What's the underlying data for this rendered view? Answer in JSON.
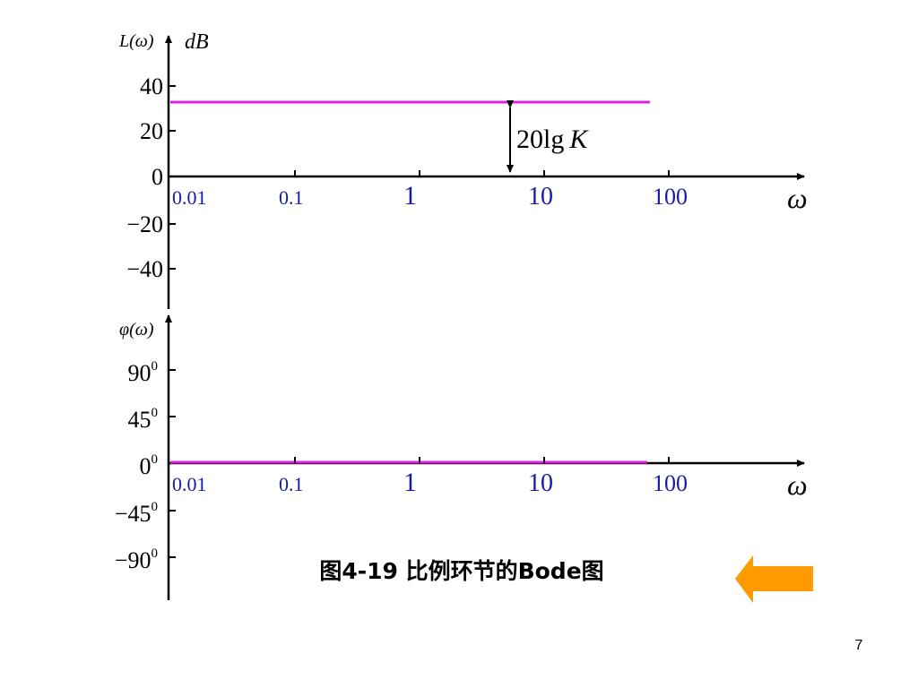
{
  "magnitude_plot": {
    "y_label": "L(ω)",
    "y_unit": "dB",
    "y_ticks": [
      "40",
      "20",
      "0",
      "−20",
      "−40"
    ],
    "x_ticks": [
      "0.01",
      "0.1",
      "1",
      "10",
      "100"
    ],
    "x_label": "ω",
    "annotation": {
      "text": "20lg",
      "symbol": "K"
    }
  },
  "phase_plot": {
    "y_label": "φ(ω)",
    "y_ticks": [
      {
        "base": "90",
        "sup": "0"
      },
      {
        "base": "45",
        "sup": "0"
      },
      {
        "base": "0",
        "sup": "0"
      },
      {
        "base": "−45",
        "sup": "0"
      },
      {
        "base": "−90",
        "sup": "0"
      }
    ],
    "x_ticks": [
      "0.01",
      "0.1",
      "1",
      "10",
      "100"
    ],
    "x_label": "ω"
  },
  "caption": "图4-19 比例环节的Bode图",
  "page_number": "7"
}
